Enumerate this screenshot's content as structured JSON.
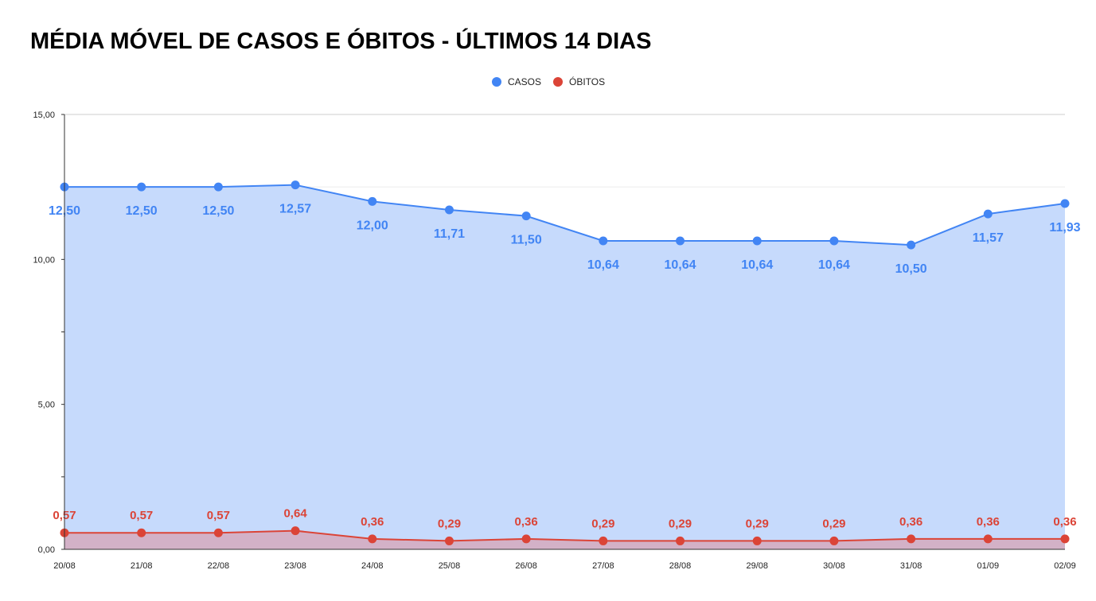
{
  "chart_data": {
    "type": "area",
    "title": "MÉDIA MÓVEL DE CASOS E ÓBITOS - ÚLTIMOS 14 DIAS",
    "xlabel": "",
    "ylabel": "",
    "categories": [
      "20/08",
      "21/08",
      "22/08",
      "23/08",
      "24/08",
      "25/08",
      "26/08",
      "27/08",
      "28/08",
      "29/08",
      "30/08",
      "31/08",
      "01/09",
      "02/09"
    ],
    "ylim": [
      0,
      15
    ],
    "y_ticks": [
      0,
      5,
      10,
      15
    ],
    "y_tick_labels": [
      "0,00",
      "5,00",
      "10,00",
      "15,00"
    ],
    "grid": true,
    "legend_position": "top-center",
    "series": [
      {
        "name": "CASOS",
        "color": "#4285f4",
        "fill": "#c6dafc",
        "values": [
          12.5,
          12.5,
          12.5,
          12.57,
          12.0,
          11.71,
          11.5,
          10.64,
          10.64,
          10.64,
          10.64,
          10.5,
          11.57,
          11.93
        ],
        "labels": [
          "12,50",
          "12,50",
          "12,50",
          "12,57",
          "12,00",
          "11,71",
          "11,50",
          "10,64",
          "10,64",
          "10,64",
          "10,64",
          "10,50",
          "11,57",
          "11,93"
        ]
      },
      {
        "name": "ÓBITOS",
        "color": "#db4437",
        "fill": "#d5a9bd",
        "values": [
          0.57,
          0.57,
          0.57,
          0.64,
          0.36,
          0.29,
          0.36,
          0.29,
          0.29,
          0.29,
          0.29,
          0.36,
          0.36,
          0.36
        ],
        "labels": [
          "0,57",
          "0,57",
          "0,57",
          "0,64",
          "0,36",
          "0,29",
          "0,36",
          "0,29",
          "0,29",
          "0,29",
          "0,29",
          "0,36",
          "0,36",
          "0,36"
        ]
      }
    ]
  }
}
